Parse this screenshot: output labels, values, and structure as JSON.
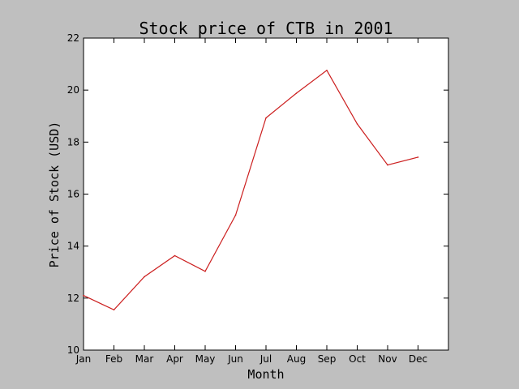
{
  "chart_data": {
    "type": "line",
    "title": "Stock price of CTB in 2001",
    "xlabel": "Month",
    "ylabel": "Price of Stock (USD)",
    "categories": [
      "Jan",
      "Feb",
      "Mar",
      "Apr",
      "May",
      "Jun",
      "Jul",
      "Aug",
      "Sep",
      "Oct",
      "Nov",
      "Dec"
    ],
    "series": [
      {
        "values": [
          12.1,
          11.55,
          12.82,
          13.63,
          13.03,
          15.19,
          18.93,
          19.88,
          20.76,
          18.7,
          17.12,
          17.42
        ],
        "color": "#cc1f1f"
      }
    ],
    "ylim": [
      10,
      22
    ],
    "yticks": [
      "10",
      "12",
      "14",
      "16",
      "18",
      "20",
      "22"
    ],
    "grid": false,
    "legend": "none",
    "background": "#bfbfbf",
    "plot_background": "#ffffff"
  }
}
